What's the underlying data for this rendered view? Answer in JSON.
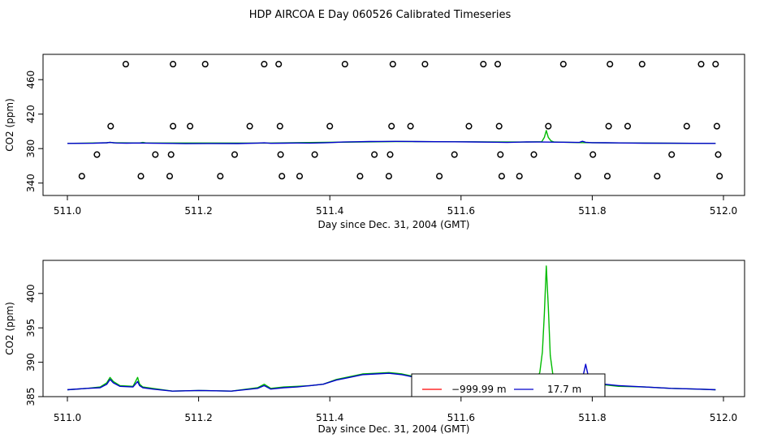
{
  "title": "HDP AIRCOA E  Day 060526  Calibrated Timeseries",
  "chart_data": [
    {
      "type": "scatter",
      "xlabel": "Day since Dec. 31, 2004 (GMT)",
      "ylabel": "CO2 (ppm)",
      "xlim": [
        510.97,
        512.01
      ],
      "ylim": [
        337,
        484
      ],
      "xticks": [
        "511.0",
        "511.2",
        "511.4",
        "511.6",
        "511.8",
        "512.0"
      ],
      "yticks": [
        "340",
        "380",
        "420",
        "460"
      ],
      "grid": false,
      "flag_points": [
        {
          "x": 511.022,
          "y": 348
        },
        {
          "x": 511.045,
          "y": 373
        },
        {
          "x": 511.066,
          "y": 406
        },
        {
          "x": 511.089,
          "y": 478
        },
        {
          "x": 511.112,
          "y": 348
        },
        {
          "x": 511.134,
          "y": 373
        },
        {
          "x": 511.156,
          "y": 348
        },
        {
          "x": 511.158,
          "y": 373
        },
        {
          "x": 511.161,
          "y": 406
        },
        {
          "x": 511.161,
          "y": 478
        },
        {
          "x": 511.187,
          "y": 406
        },
        {
          "x": 511.21,
          "y": 478
        },
        {
          "x": 511.233,
          "y": 348
        },
        {
          "x": 511.255,
          "y": 373
        },
        {
          "x": 511.278,
          "y": 406
        },
        {
          "x": 511.3,
          "y": 478
        },
        {
          "x": 511.322,
          "y": 478
        },
        {
          "x": 511.324,
          "y": 406
        },
        {
          "x": 511.325,
          "y": 373
        },
        {
          "x": 511.327,
          "y": 348
        },
        {
          "x": 511.354,
          "y": 348
        },
        {
          "x": 511.377,
          "y": 373
        },
        {
          "x": 511.4,
          "y": 406
        },
        {
          "x": 511.423,
          "y": 478
        },
        {
          "x": 511.446,
          "y": 348
        },
        {
          "x": 511.468,
          "y": 373
        },
        {
          "x": 511.49,
          "y": 348
        },
        {
          "x": 511.492,
          "y": 373
        },
        {
          "x": 511.494,
          "y": 406
        },
        {
          "x": 511.496,
          "y": 478
        },
        {
          "x": 511.523,
          "y": 406
        },
        {
          "x": 511.545,
          "y": 478
        },
        {
          "x": 511.567,
          "y": 348
        },
        {
          "x": 511.59,
          "y": 373
        },
        {
          "x": 511.612,
          "y": 406
        },
        {
          "x": 511.634,
          "y": 478
        },
        {
          "x": 511.656,
          "y": 478
        },
        {
          "x": 511.658,
          "y": 406
        },
        {
          "x": 511.66,
          "y": 373
        },
        {
          "x": 511.662,
          "y": 348
        },
        {
          "x": 511.689,
          "y": 348
        },
        {
          "x": 511.711,
          "y": 373
        },
        {
          "x": 511.733,
          "y": 406
        },
        {
          "x": 511.756,
          "y": 478
        },
        {
          "x": 511.778,
          "y": 348
        },
        {
          "x": 511.801,
          "y": 373
        },
        {
          "x": 511.823,
          "y": 348
        },
        {
          "x": 511.825,
          "y": 406
        },
        {
          "x": 511.827,
          "y": 478
        },
        {
          "x": 511.854,
          "y": 406
        },
        {
          "x": 511.876,
          "y": 478
        },
        {
          "x": 511.899,
          "y": 348
        },
        {
          "x": 511.921,
          "y": 373
        },
        {
          "x": 511.944,
          "y": 406
        },
        {
          "x": 511.966,
          "y": 478
        },
        {
          "x": 511.988,
          "y": 478
        },
        {
          "x": 511.99,
          "y": 406
        },
        {
          "x": 511.992,
          "y": 373
        },
        {
          "x": 511.994,
          "y": 348
        }
      ],
      "series": [
        {
          "color": "#00bb00",
          "x": [
            511.0,
            511.06,
            511.065,
            511.07,
            511.11,
            511.115,
            511.12,
            511.3,
            511.5,
            511.7,
            511.723,
            511.727,
            511.73,
            511.733,
            511.737,
            511.742,
            511.75,
            511.78,
            511.9,
            511.988
          ],
          "y": [
            386,
            386.8,
            387.3,
            386.8,
            386.5,
            387.2,
            386.5,
            386.4,
            388.2,
            387.6,
            388,
            393,
            401,
            393,
            389,
            387.6,
            387.5,
            387,
            386.3,
            386
          ]
        },
        {
          "color": "#0000cc",
          "x": [
            511.0,
            511.04,
            511.06,
            511.065,
            511.075,
            511.09,
            511.11,
            511.13,
            511.16,
            511.18,
            511.22,
            511.26,
            511.29,
            511.3,
            511.31,
            511.33,
            511.35,
            511.37,
            511.39,
            511.4,
            511.42,
            511.44,
            511.46,
            511.48,
            511.5,
            511.53,
            511.56,
            511.59,
            511.62,
            511.65,
            511.67,
            511.69,
            511.7,
            511.72,
            511.75,
            511.78,
            511.785,
            511.79,
            511.8,
            511.82,
            511.85,
            511.88,
            511.92,
            511.95,
            511.988
          ],
          "y": [
            386,
            386.2,
            386.8,
            387.2,
            386.5,
            386.3,
            386.5,
            386.2,
            386,
            385.7,
            385.9,
            385.8,
            386.4,
            386.7,
            386.1,
            386.3,
            386.5,
            386.4,
            386.7,
            387,
            387.6,
            387.9,
            388.2,
            388.3,
            388.4,
            388.2,
            388,
            387.9,
            387.7,
            387.4,
            387.2,
            387.5,
            387.8,
            387.6,
            387.4,
            387.2,
            388.5,
            387.3,
            386.9,
            386.8,
            386.5,
            386.3,
            386.2,
            386.1,
            386
          ]
        }
      ]
    },
    {
      "type": "line",
      "xlabel": "Day since Dec. 31, 2004 (GMT)",
      "ylabel": "CO2 (ppm)",
      "xlim": [
        510.97,
        512.01
      ],
      "ylim": [
        385,
        404
      ],
      "xticks": [
        "511.0",
        "511.2",
        "511.4",
        "511.6",
        "511.8",
        "512.0"
      ],
      "yticks": [
        "385",
        "390",
        "395",
        "400"
      ],
      "grid": false,
      "legend": {
        "position": "bottom-right",
        "entries": [
          {
            "label": "−999.99 m",
            "color": "#ff0000"
          },
          {
            "label": "17.7 m",
            "color": "#0000cc"
          }
        ]
      },
      "series": [
        {
          "color": "#00bb00",
          "x": [
            511.0,
            511.03,
            511.05,
            511.06,
            511.065,
            511.07,
            511.08,
            511.1,
            511.107,
            511.11,
            511.115,
            511.13,
            511.16,
            511.2,
            511.25,
            511.29,
            511.3,
            511.31,
            511.33,
            511.35,
            511.37,
            511.39,
            511.41,
            511.43,
            511.45,
            511.47,
            511.49,
            511.51,
            511.53,
            511.55,
            511.57,
            511.6,
            511.63,
            511.66,
            511.68,
            511.7,
            511.715,
            511.72,
            511.724,
            511.727,
            511.73,
            511.733,
            511.736,
            511.74,
            511.745,
            511.75,
            511.77,
            511.79,
            511.81,
            511.84,
            511.88,
            511.92,
            511.96,
            511.988
          ],
          "y": [
            386,
            386.2,
            386.4,
            387,
            387.8,
            387.2,
            386.6,
            386.5,
            387.8,
            386.8,
            386.4,
            386.2,
            385.8,
            385.9,
            385.8,
            386.3,
            386.8,
            386.2,
            386.4,
            386.5,
            386.6,
            386.8,
            387.5,
            387.9,
            388.3,
            388.4,
            388.5,
            388.3,
            387.9,
            388.1,
            388,
            387.8,
            387.5,
            387.2,
            387.3,
            387.8,
            387.6,
            388.5,
            391.5,
            397,
            404,
            398,
            391,
            388.2,
            387.5,
            387.3,
            387,
            386.9,
            386.8,
            386.5,
            386.4,
            386.2,
            386.1,
            386
          ]
        },
        {
          "color": "#0000cc",
          "x": [
            511.0,
            511.03,
            511.05,
            511.06,
            511.065,
            511.07,
            511.08,
            511.1,
            511.107,
            511.11,
            511.115,
            511.13,
            511.16,
            511.2,
            511.25,
            511.29,
            511.3,
            511.31,
            511.33,
            511.35,
            511.37,
            511.39,
            511.41,
            511.43,
            511.45,
            511.47,
            511.49,
            511.51,
            511.53,
            511.55,
            511.57,
            511.6,
            511.63,
            511.66,
            511.68,
            511.7,
            511.715,
            511.73,
            511.75,
            511.77,
            511.785,
            511.79,
            511.795,
            511.81,
            511.84,
            511.88,
            511.92,
            511.96,
            511.988
          ],
          "y": [
            386,
            386.2,
            386.3,
            386.8,
            387.5,
            387,
            386.5,
            386.4,
            387.2,
            386.6,
            386.3,
            386.1,
            385.8,
            385.9,
            385.8,
            386.2,
            386.6,
            386.1,
            386.3,
            386.4,
            386.6,
            386.8,
            387.4,
            387.8,
            388.2,
            388.3,
            388.4,
            388.2,
            387.8,
            388,
            387.9,
            387.7,
            387.4,
            387.1,
            387.2,
            387.6,
            387.4,
            387.3,
            387.2,
            387,
            387.6,
            389.7,
            387.5,
            386.9,
            386.6,
            386.4,
            386.2,
            386.1,
            386
          ]
        }
      ]
    }
  ]
}
